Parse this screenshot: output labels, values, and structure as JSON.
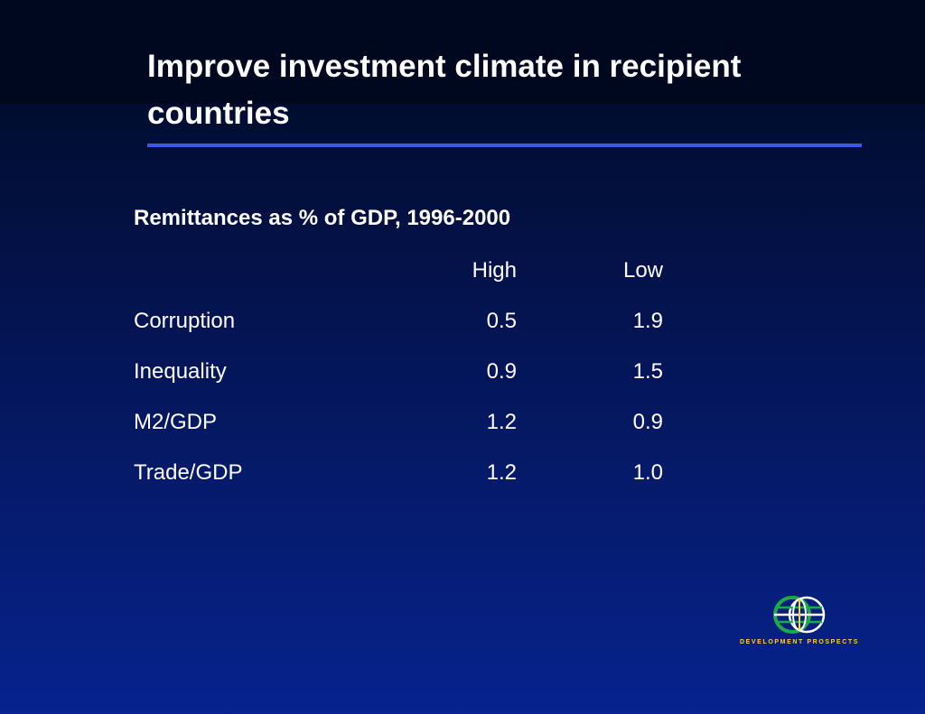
{
  "slide": {
    "title": "Improve investment climate in recipient countries"
  },
  "table": {
    "caption": "Remittances as % of GDP, 1996-2000",
    "headers": [
      "",
      "High",
      "Low"
    ],
    "rows": [
      {
        "label": "Corruption",
        "high": "0.5",
        "low": "1.9"
      },
      {
        "label": "Inequality",
        "high": "0.9",
        "low": "1.5"
      },
      {
        "label": "M2/GDP",
        "high": "1.2",
        "low": "0.9"
      },
      {
        "label": "Trade/GDP",
        "high": "1.2",
        "low": "1.0"
      }
    ]
  },
  "logo": {
    "text": "DEVELOPMENT PROSPECTS",
    "icon": "globe-icon",
    "colors": {
      "green": "#1faa4a",
      "white": "#ffffff",
      "text": "#ffd23a"
    }
  },
  "colors": {
    "background_top": "#000820",
    "background_bottom": "#06238e",
    "rule": "#3a5bdc"
  }
}
